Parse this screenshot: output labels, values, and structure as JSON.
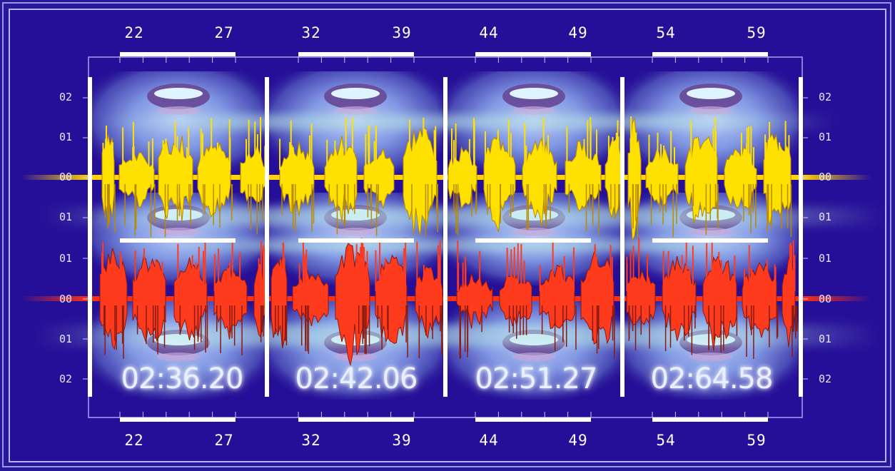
{
  "top_ruler": [
    "22",
    "27",
    "32",
    "39",
    "44",
    "49",
    "54",
    "59"
  ],
  "bottom_ruler": [
    "22",
    "27",
    "32",
    "39",
    "44",
    "49",
    "54",
    "59"
  ],
  "left_scale": [
    "02",
    "01",
    "00",
    "01",
    "01",
    "00",
    "01",
    "02"
  ],
  "right_scale": [
    "02",
    "01",
    "00",
    "01",
    "01",
    "00",
    "01",
    "02"
  ],
  "timecodes": [
    "02:36.20",
    "02:42.06",
    "02:51.27",
    "02:64.58"
  ],
  "colors": {
    "background": "#28189a",
    "upper_waveform": "#ffe100",
    "lower_waveform": "#ff3b1e",
    "face_tint": "#7fb4ff",
    "ruler_bar": "#ffffff"
  },
  "icons": [
    "face-photo-montage"
  ]
}
